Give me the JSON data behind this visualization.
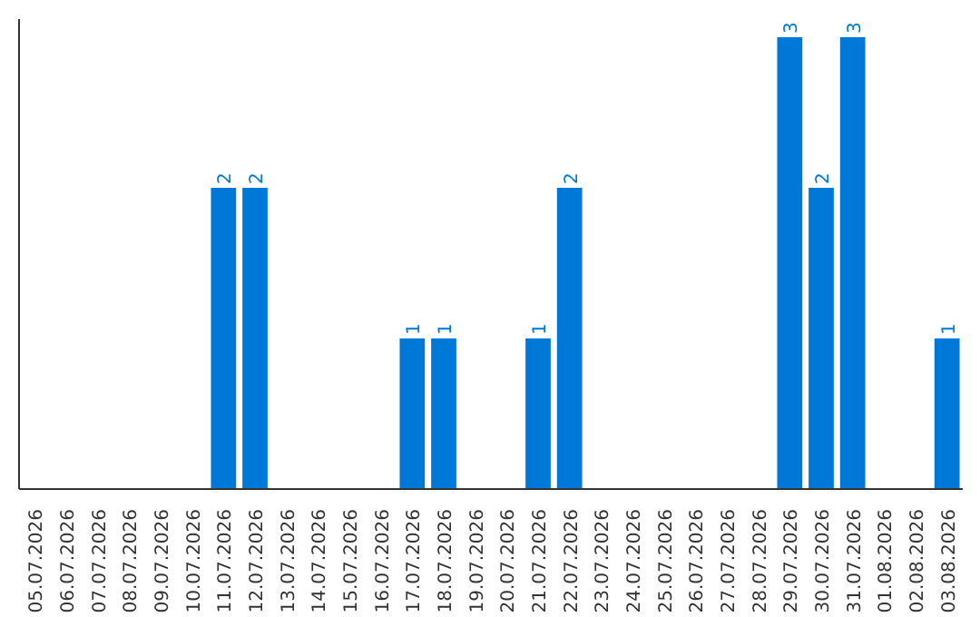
{
  "chart_data": {
    "type": "bar",
    "categories": [
      "05.07.2026",
      "06.07.2026",
      "07.07.2026",
      "08.07.2026",
      "09.07.2026",
      "10.07.2026",
      "11.07.2026",
      "12.07.2026",
      "13.07.2026",
      "14.07.2026",
      "15.07.2026",
      "16.07.2026",
      "17.07.2026",
      "18.07.2026",
      "19.07.2026",
      "20.07.2026",
      "21.07.2026",
      "22.07.2026",
      "23.07.2026",
      "24.07.2026",
      "25.07.2026",
      "26.07.2026",
      "27.07.2026",
      "28.07.2026",
      "29.07.2026",
      "30.07.2026",
      "31.07.2026",
      "01.08.2026",
      "02.08.2026",
      "03.08.2026"
    ],
    "values": [
      0,
      0,
      0,
      0,
      0,
      0,
      2,
      2,
      0,
      0,
      0,
      0,
      1,
      1,
      0,
      0,
      1,
      2,
      0,
      0,
      0,
      0,
      0,
      0,
      3,
      2,
      3,
      0,
      0,
      1
    ],
    "value_labels": [
      null,
      null,
      null,
      null,
      null,
      null,
      "2",
      "2",
      null,
      null,
      null,
      null,
      "1",
      "1",
      null,
      null,
      "1",
      "2",
      null,
      null,
      null,
      null,
      null,
      null,
      "3",
      "2",
      "3",
      null,
      null,
      "1"
    ],
    "color": "#0078d7",
    "grid": false
  }
}
